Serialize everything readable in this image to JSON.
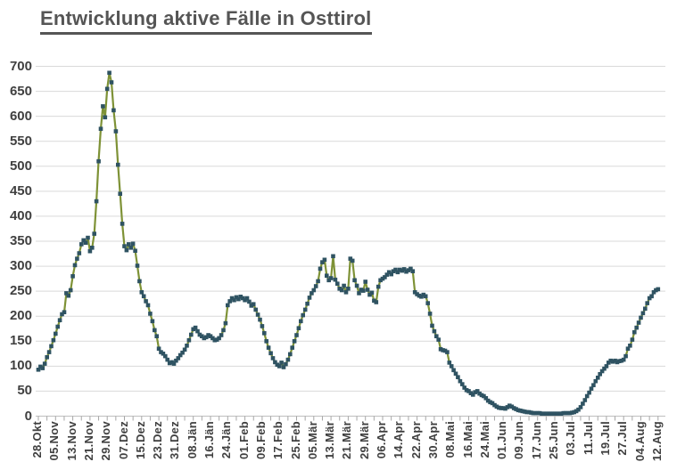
{
  "title": "Entwicklung aktive Fälle in Osttirol",
  "colors": {
    "title": "#555555",
    "line": "#7E9236",
    "marker": "#2F5362",
    "grid": "#D9D9D9",
    "axis": "#BFBFBF",
    "tick": "#A6A6A6",
    "axis_label": "#404040"
  },
  "chart_data": {
    "type": "line",
    "title": "Entwicklung aktive Fälle in Osttirol",
    "xlabel": "",
    "ylabel": "",
    "ylim": [
      0,
      700
    ],
    "yticks": [
      0,
      50,
      100,
      150,
      200,
      250,
      300,
      350,
      400,
      450,
      500,
      550,
      600,
      650,
      700
    ],
    "grid": "horizontal",
    "legend": "none",
    "marker": "square",
    "x_tick_labels": [
      "28.Okt",
      "05.Nov",
      "13.Nov",
      "21.Nov",
      "29.Nov",
      "07.Dez",
      "15.Dez",
      "23.Dez",
      "31.Dez",
      "08.Jän",
      "16.Jän",
      "24.Jän",
      "01.Feb",
      "09.Feb",
      "17.Feb",
      "25.Feb",
      "05.Mär",
      "13.Mär",
      "21.Mär",
      "29.Mär",
      "06.Apr",
      "14.Apr",
      "22.Apr",
      "30.Apr",
      "08.Mai",
      "16.Mai",
      "24.Mai",
      "01.Jun",
      "09.Jun",
      "17.Jun",
      "25.Jun",
      "03.Jul",
      "11.Jul",
      "19.Jul",
      "27.Jul",
      "04.Aug",
      "12.Aug"
    ],
    "x_label_every_n_points": 8,
    "x_minor_tick_every_n_points": 4,
    "series": [
      {
        "name": "aktive Fälle",
        "values": [
          93,
          99,
          96,
          105,
          118,
          128,
          140,
          152,
          165,
          179,
          192,
          204,
          208,
          246,
          241,
          252,
          280,
          302,
          315,
          326,
          344,
          352,
          347,
          357,
          330,
          337,
          365,
          430,
          510,
          575,
          620,
          598,
          655,
          687,
          668,
          612,
          570,
          503,
          445,
          385,
          340,
          332,
          344,
          337,
          345,
          331,
          301,
          270,
          248,
          240,
          230,
          222,
          205,
          190,
          172,
          160,
          135,
          128,
          125,
          120,
          113,
          106,
          108,
          105,
          111,
          116,
          122,
          127,
          133,
          141,
          152,
          163,
          174,
          177,
          170,
          163,
          160,
          156,
          158,
          162,
          160,
          156,
          152,
          153,
          156,
          162,
          172,
          186,
          222,
          230,
          236,
          232,
          238,
          234,
          239,
          236,
          232,
          236,
          229,
          221,
          224,
          213,
          203,
          193,
          180,
          166,
          150,
          137,
          126,
          116,
          108,
          103,
          100,
          107,
          98,
          104,
          113,
          124,
          137,
          150,
          162,
          176,
          190,
          202,
          213,
          225,
          237,
          246,
          252,
          260,
          270,
          295,
          308,
          313,
          281,
          272,
          276,
          320,
          273,
          265,
          255,
          252,
          261,
          248,
          255,
          315,
          311,
          272,
          261,
          246,
          253,
          251,
          269,
          253,
          243,
          247,
          231,
          228,
          259,
          272,
          275,
          278,
          283,
          288,
          284,
          290,
          293,
          288,
          293,
          291,
          294,
          289,
          292,
          295,
          290,
          248,
          244,
          241,
          239,
          243,
          240,
          226,
          205,
          181,
          170,
          160,
          153,
          134,
          132,
          131,
          128,
          107,
          100,
          92,
          85,
          78,
          70,
          64,
          57,
          52,
          50,
          46,
          43,
          48,
          50,
          45,
          42,
          40,
          36,
          31,
          28,
          26,
          22,
          19,
          17,
          16,
          16,
          15,
          18,
          21,
          19,
          16,
          14,
          12,
          11,
          10,
          9,
          8,
          8,
          7,
          6,
          6,
          6,
          6,
          5,
          5,
          5,
          5,
          5,
          5,
          5,
          5,
          5,
          5,
          6,
          6,
          6,
          6,
          7,
          8,
          10,
          13,
          18,
          25,
          32,
          40,
          47,
          55,
          62,
          70,
          77,
          84,
          90,
          95,
          100,
          107,
          111,
          109,
          111,
          108,
          110,
          111,
          113,
          120,
          135,
          141,
          153,
          168,
          177,
          187,
          197,
          206,
          215,
          226,
          236,
          240,
          248,
          252,
          254
        ]
      }
    ]
  }
}
